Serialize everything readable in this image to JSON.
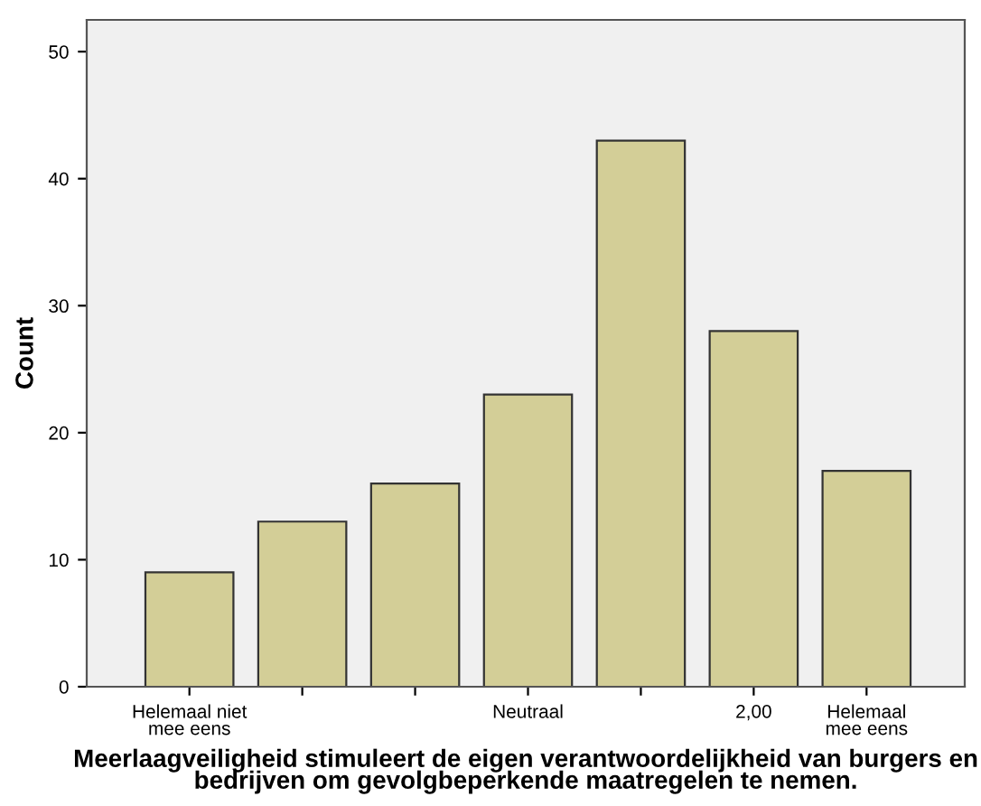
{
  "chart_data": {
    "type": "bar",
    "categories": [
      "Helemaal niet\nmee eens",
      null,
      null,
      "Neutraal",
      null,
      "2,00",
      "Helemaal\nmee eens"
    ],
    "values": [
      9,
      13,
      16,
      23,
      43,
      28,
      17
    ],
    "color": "#d3ce97",
    "xlabel": "Meerlaagveiligheid stimuleert de eigen verantwoordelijkheid van burgers en bedrijven om gevolgbeperkende maatregelen te nemen.",
    "ylabel": "Count",
    "ylim": [
      0,
      52.5
    ],
    "yticks": [
      0,
      10,
      20,
      30,
      40,
      50
    ],
    "grid": false,
    "legend": false
  }
}
